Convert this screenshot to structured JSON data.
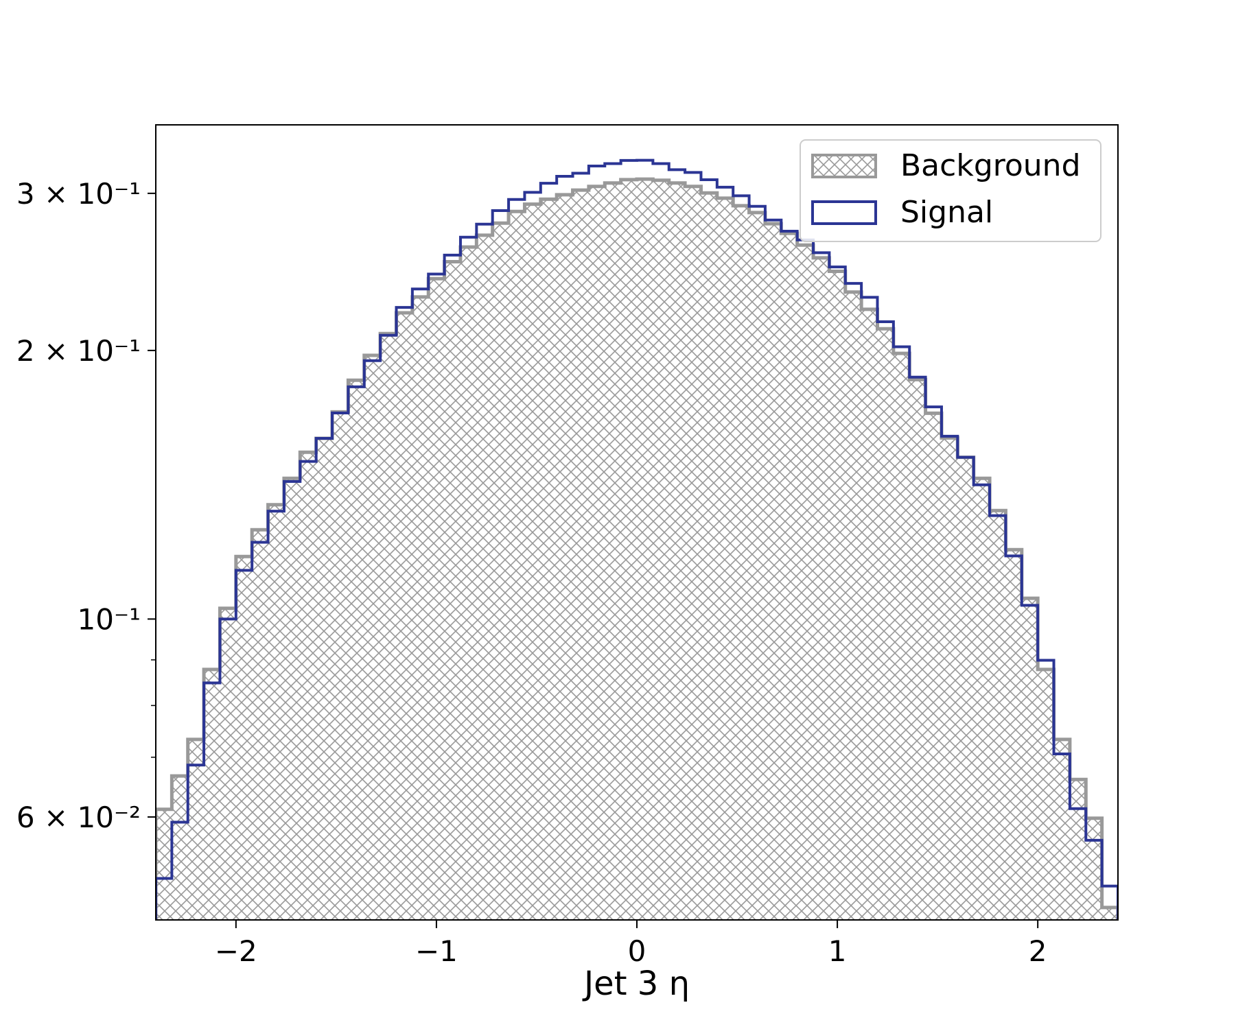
{
  "chart_data": {
    "type": "histogram",
    "xlabel": "Jet 3 η",
    "ylabel": "",
    "xlim": [
      -2.4,
      2.4
    ],
    "ylim": [
      0.046,
      0.358
    ],
    "yscale": "log",
    "grid": false,
    "legend_position": "top-right",
    "bin_edges": [
      -2.4,
      -2.32,
      -2.24,
      -2.16,
      -2.08,
      -2.0,
      -1.92,
      -1.84,
      -1.76,
      -1.68,
      -1.6,
      -1.52,
      -1.44,
      -1.36,
      -1.28,
      -1.2,
      -1.12,
      -1.04,
      -0.96,
      -0.88,
      -0.8,
      -0.72,
      -0.64,
      -0.56,
      -0.48,
      -0.4,
      -0.32,
      -0.24,
      -0.16,
      -0.08,
      0.0,
      0.08,
      0.16,
      0.24,
      0.32,
      0.4,
      0.48,
      0.56,
      0.64,
      0.72,
      0.8,
      0.88,
      0.96,
      1.04,
      1.12,
      1.2,
      1.28,
      1.36,
      1.44,
      1.52,
      1.6,
      1.68,
      1.76,
      1.84,
      1.92,
      2.0,
      2.08,
      2.16,
      2.24,
      2.32,
      2.4
    ],
    "x_ticks": [
      {
        "value": -2,
        "label": "−2"
      },
      {
        "value": -1,
        "label": "−1"
      },
      {
        "value": 0,
        "label": "0"
      },
      {
        "value": 1,
        "label": "1"
      },
      {
        "value": 2,
        "label": "2"
      }
    ],
    "y_ticks_major": [
      {
        "value": 0.06,
        "label": "6 × 10⁻²"
      },
      {
        "value": 0.1,
        "label": "10⁻¹"
      },
      {
        "value": 0.2,
        "label": "2 × 10⁻¹"
      },
      {
        "value": 0.3,
        "label": "3 × 10⁻¹"
      }
    ],
    "y_ticks_minor": [
      0.07,
      0.08,
      0.09
    ],
    "series": [
      {
        "name": "Background",
        "style": "hatched",
        "color": "#999999",
        "values": [
          0.0612,
          0.0667,
          0.0733,
          0.0878,
          0.1028,
          0.1175,
          0.1259,
          0.1343,
          0.1438,
          0.1538,
          0.1594,
          0.1707,
          0.1852,
          0.1975,
          0.2089,
          0.2204,
          0.2296,
          0.2407,
          0.2515,
          0.2612,
          0.2693,
          0.2778,
          0.2863,
          0.2917,
          0.2955,
          0.2989,
          0.3025,
          0.3054,
          0.3081,
          0.3108,
          0.3112,
          0.3103,
          0.3081,
          0.3054,
          0.3003,
          0.2963,
          0.2906,
          0.2855,
          0.2774,
          0.2706,
          0.2625,
          0.254,
          0.2453,
          0.2325,
          0.2224,
          0.2115,
          0.1985,
          0.1855,
          0.1701,
          0.1596,
          0.1518,
          0.1438,
          0.1323,
          0.1196,
          0.1055,
          0.0878,
          0.0733,
          0.0661,
          0.0598,
          0.0475
        ]
      },
      {
        "name": "Signal",
        "style": "step",
        "color": "#2b3594",
        "values": [
          0.0512,
          0.0592,
          0.0686,
          0.0848,
          0.1,
          0.1134,
          0.1219,
          0.1321,
          0.1426,
          0.1502,
          0.1594,
          0.1702,
          0.1821,
          0.1948,
          0.208,
          0.2235,
          0.2344,
          0.2436,
          0.2558,
          0.2679,
          0.2771,
          0.2869,
          0.2953,
          0.3008,
          0.3079,
          0.3135,
          0.316,
          0.3219,
          0.3239,
          0.3266,
          0.3267,
          0.3239,
          0.3189,
          0.3166,
          0.3107,
          0.3048,
          0.2981,
          0.2901,
          0.28,
          0.2721,
          0.266,
          0.2574,
          0.2481,
          0.2378,
          0.2294,
          0.2154,
          0.2019,
          0.1867,
          0.1729,
          0.1603,
          0.1518,
          0.1414,
          0.1306,
          0.1177,
          0.1036,
          0.0899,
          0.0706,
          0.0613,
          0.0565,
          0.0502
        ]
      }
    ]
  }
}
